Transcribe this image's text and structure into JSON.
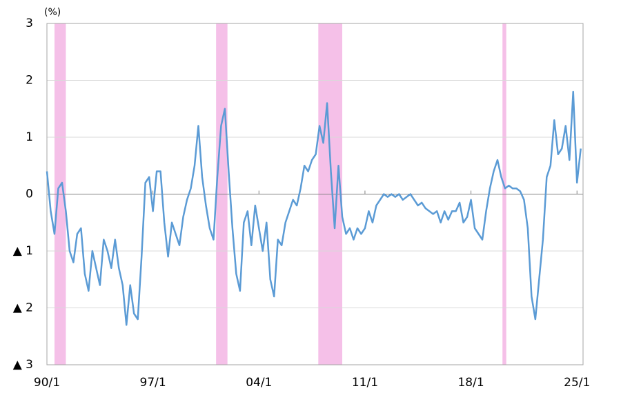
{
  "chart_data": {
    "type": "line",
    "unit_label": "(%)",
    "x": [
      1990,
      1990.25,
      1990.5,
      1990.75,
      1991,
      1991.25,
      1991.5,
      1991.75,
      1992,
      1992.25,
      1992.5,
      1992.75,
      1993,
      1993.25,
      1993.5,
      1993.75,
      1994,
      1994.25,
      1994.5,
      1994.75,
      1995,
      1995.25,
      1995.5,
      1995.75,
      1996,
      1996.25,
      1996.5,
      1996.75,
      1997,
      1997.25,
      1997.5,
      1997.75,
      1998,
      1998.25,
      1998.5,
      1998.75,
      1999,
      1999.25,
      1999.5,
      1999.75,
      2000,
      2000.25,
      2000.5,
      2000.75,
      2001,
      2001.25,
      2001.5,
      2001.75,
      2002,
      2002.25,
      2002.5,
      2002.75,
      2003,
      2003.25,
      2003.5,
      2003.75,
      2004,
      2004.25,
      2004.5,
      2004.75,
      2005,
      2005.25,
      2005.5,
      2005.75,
      2006,
      2006.25,
      2006.5,
      2006.75,
      2007,
      2007.25,
      2007.5,
      2007.75,
      2008,
      2008.25,
      2008.5,
      2008.75,
      2009,
      2009.25,
      2009.5,
      2009.75,
      2010,
      2010.25,
      2010.5,
      2010.75,
      2011,
      2011.25,
      2011.5,
      2011.75,
      2012,
      2012.25,
      2012.5,
      2012.75,
      2013,
      2013.25,
      2013.5,
      2013.75,
      2014,
      2014.25,
      2014.5,
      2014.75,
      2015,
      2015.25,
      2015.5,
      2015.75,
      2016,
      2016.25,
      2016.5,
      2016.75,
      2017,
      2017.25,
      2017.5,
      2017.75,
      2018,
      2018.25,
      2018.5,
      2018.75,
      2019,
      2019.25,
      2019.5,
      2019.75,
      2020,
      2020.25,
      2020.5,
      2020.75,
      2021,
      2021.25,
      2021.5,
      2021.75,
      2022,
      2022.25,
      2022.5,
      2022.75,
      2023,
      2023.25,
      2023.5,
      2023.75,
      2024,
      2024.25,
      2024.5,
      2024.75,
      2025,
      2025.25
    ],
    "series": [
      {
        "color": "#5b9bd5",
        "values": [
          0.4,
          -0.3,
          -0.7,
          0.1,
          0.2,
          -0.3,
          -1.0,
          -1.2,
          -0.7,
          -0.6,
          -1.4,
          -1.7,
          -1.0,
          -1.3,
          -1.6,
          -0.8,
          -1.0,
          -1.3,
          -0.8,
          -1.3,
          -1.6,
          -2.3,
          -1.6,
          -2.1,
          -2.2,
          -1.1,
          0.2,
          0.3,
          -0.3,
          0.4,
          0.4,
          -0.5,
          -1.1,
          -0.5,
          -0.7,
          -0.9,
          -0.4,
          -0.1,
          0.1,
          0.5,
          1.2,
          0.3,
          -0.2,
          -0.6,
          -0.8,
          0.3,
          1.2,
          1.5,
          0.4,
          -0.6,
          -1.4,
          -1.7,
          -0.5,
          -0.3,
          -0.9,
          -0.2,
          -0.6,
          -1.0,
          -0.5,
          -1.5,
          -1.8,
          -0.8,
          -0.9,
          -0.5,
          -0.3,
          -0.1,
          -0.2,
          0.1,
          0.5,
          0.4,
          0.6,
          0.7,
          1.2,
          0.9,
          1.6,
          0.4,
          -0.6,
          0.5,
          -0.4,
          -0.7,
          -0.6,
          -0.8,
          -0.6,
          -0.7,
          -0.6,
          -0.3,
          -0.5,
          -0.2,
          -0.1,
          0.0,
          -0.05,
          0.0,
          -0.05,
          0.0,
          -0.1,
          -0.05,
          0.0,
          -0.1,
          -0.2,
          -0.15,
          -0.25,
          -0.3,
          -0.35,
          -0.3,
          -0.5,
          -0.3,
          -0.45,
          -0.3,
          -0.3,
          -0.15,
          -0.5,
          -0.4,
          -0.1,
          -0.6,
          -0.7,
          -0.8,
          -0.3,
          0.1,
          0.4,
          0.6,
          0.3,
          0.1,
          0.15,
          0.1,
          0.1,
          0.05,
          -0.1,
          -0.6,
          -1.8,
          -2.2,
          -1.5,
          -0.8,
          0.3,
          0.5,
          1.3,
          0.7,
          0.8,
          1.2,
          0.6,
          1.8,
          0.2,
          0.8
        ]
      }
    ],
    "recessions": [
      [
        1990.5,
        1991.25
      ],
      [
        2001.17,
        2001.92
      ],
      [
        2007.92,
        2009.5
      ],
      [
        2020.08,
        2020.33
      ]
    ],
    "recession_color": "#f5c0e8",
    "xlim": [
      1990,
      2025.4
    ],
    "xticks": [
      {
        "value": 1990,
        "label": "90/1"
      },
      {
        "value": 1997,
        "label": "97/1"
      },
      {
        "value": 2004,
        "label": "04/1"
      },
      {
        "value": 2011,
        "label": "11/1"
      },
      {
        "value": 2018,
        "label": "18/1"
      },
      {
        "value": 2025,
        "label": "25/1"
      }
    ],
    "ylim": [
      -3,
      3
    ],
    "yticks": [
      {
        "value": -3,
        "label": "▲ 3"
      },
      {
        "value": -2,
        "label": "▲ 2"
      },
      {
        "value": -1,
        "label": "▲ 1"
      },
      0,
      1,
      2,
      3
    ],
    "grid": true
  }
}
